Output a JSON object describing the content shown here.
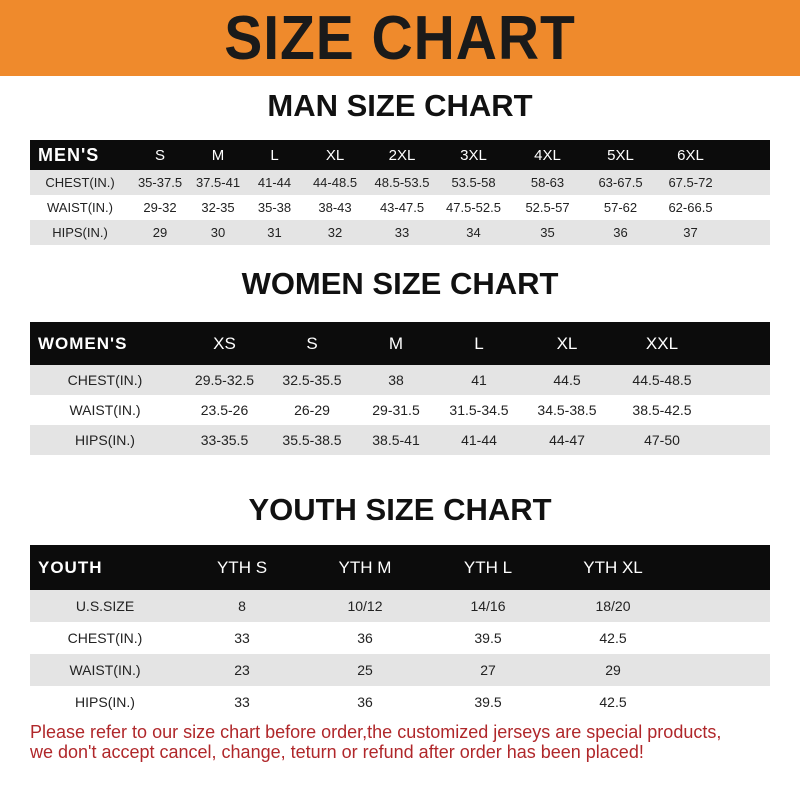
{
  "banner_title": "SIZE CHART",
  "men": {
    "title": "MAN SIZE CHART",
    "header": [
      "MEN'S",
      "S",
      "M",
      "L",
      "XL",
      "2XL",
      "3XL",
      "4XL",
      "5XL",
      "6XL"
    ],
    "rows": [
      [
        "CHEST(IN.)",
        "35-37.5",
        "37.5-41",
        "41-44",
        "44-48.5",
        "48.5-53.5",
        "53.5-58",
        "58-63",
        "63-67.5",
        "67.5-72"
      ],
      [
        "WAIST(IN.)",
        "29-32",
        "32-35",
        "35-38",
        "38-43",
        "43-47.5",
        "47.5-52.5",
        "52.5-57",
        "57-62",
        "62-66.5"
      ],
      [
        "HIPS(IN.)",
        "29",
        "30",
        "31",
        "32",
        "33",
        "34",
        "35",
        "36",
        "37"
      ]
    ]
  },
  "women": {
    "title": "WOMEN SIZE CHART",
    "header": [
      "WOMEN'S",
      "XS",
      "S",
      "M",
      "L",
      "XL",
      "XXL"
    ],
    "rows": [
      [
        "CHEST(IN.)",
        "29.5-32.5",
        "32.5-35.5",
        "38",
        "41",
        "44.5",
        "44.5-48.5"
      ],
      [
        "WAIST(IN.)",
        "23.5-26",
        "26-29",
        "29-31.5",
        "31.5-34.5",
        "34.5-38.5",
        "38.5-42.5"
      ],
      [
        "HIPS(IN.)",
        "33-35.5",
        "35.5-38.5",
        "38.5-41",
        "41-44",
        "44-47",
        "47-50"
      ]
    ]
  },
  "youth": {
    "title": "YOUTH SIZE CHART",
    "header": [
      "YOUTH",
      "YTH S",
      "YTH M",
      "YTH L",
      "YTH XL"
    ],
    "rows": [
      [
        "U.S.SIZE",
        "8",
        "10/12",
        "14/16",
        "18/20"
      ],
      [
        "CHEST(IN.)",
        "33",
        "36",
        "39.5",
        "42.5"
      ],
      [
        "WAIST(IN.)",
        "23",
        "25",
        "27",
        "29"
      ],
      [
        "HIPS(IN.)",
        "33",
        "36",
        "39.5",
        "42.5"
      ]
    ]
  },
  "note": {
    "line1": "Please refer to our size chart before order,the customized jerseys are special products,",
    "line2": "we don't accept cancel, change, teturn or refund after order has been placed!"
  },
  "colors": {
    "banner": "#ef8a2c",
    "note": "#b0272a",
    "header_row": "#0c0c0c",
    "stripe": "#e4e4e4"
  }
}
